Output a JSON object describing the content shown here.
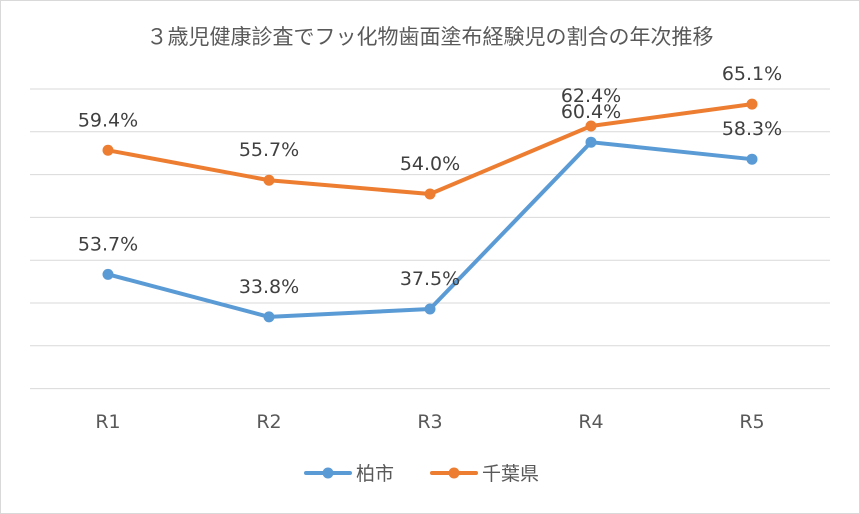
{
  "chart_data": {
    "type": "line",
    "title": "３歳児健康診査でフッ化物歯面塗布経験児の割合の年次推移",
    "categories": [
      "R1",
      "R2",
      "R3",
      "R4",
      "R5"
    ],
    "series": [
      {
        "name": "柏市",
        "color": "#5b9bd5",
        "values": [
          53.7,
          33.8,
          37.5,
          60.4,
          58.3
        ],
        "labels": [
          "53.7%",
          "33.8%",
          "37.5%",
          "60.4%",
          "58.3%"
        ]
      },
      {
        "name": "千葉県",
        "color": "#ed7d31",
        "values": [
          59.4,
          55.7,
          54.0,
          62.4,
          65.1
        ],
        "labels": [
          "59.4%",
          "55.7%",
          "54.0%",
          "62.4%",
          "65.1%"
        ]
      }
    ],
    "xlabel": "",
    "ylabel": "",
    "grid": true,
    "legend_position": "bottom"
  }
}
